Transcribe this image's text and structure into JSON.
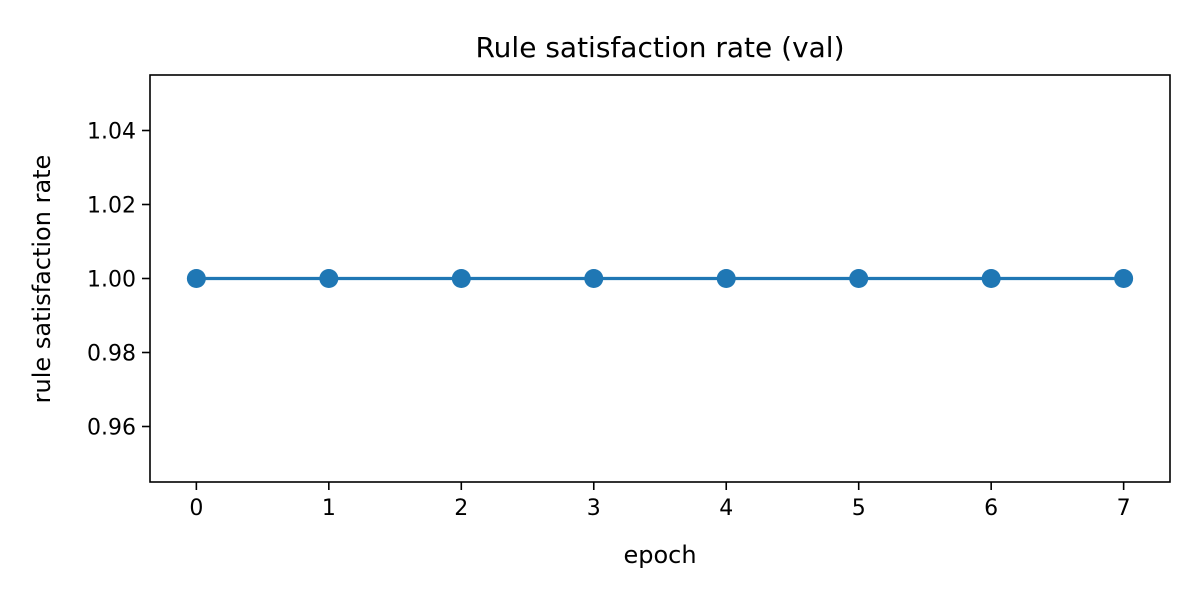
{
  "chart_data": {
    "type": "line",
    "title": "Rule satisfaction rate (val)",
    "xlabel": "epoch",
    "ylabel": "rule satisfaction rate",
    "x": [
      0,
      1,
      2,
      3,
      4,
      5,
      6,
      7
    ],
    "series": [
      {
        "values": [
          1.0,
          1.0,
          1.0,
          1.0,
          1.0,
          1.0,
          1.0,
          1.0
        ],
        "color": "#1f77b4",
        "marker": "circle"
      }
    ],
    "xlim": [
      -0.35,
      7.35
    ],
    "ylim": [
      0.945,
      1.055
    ],
    "xticks": [
      0,
      1,
      2,
      3,
      4,
      5,
      6,
      7
    ],
    "xtick_labels": [
      "0",
      "1",
      "2",
      "3",
      "4",
      "5",
      "6",
      "7"
    ],
    "yticks": [
      0.96,
      0.98,
      1.0,
      1.02,
      1.04
    ],
    "ytick_labels": [
      "0.96",
      "0.98",
      "1.00",
      "1.02",
      "1.04"
    ],
    "grid": false,
    "legend": "none"
  }
}
